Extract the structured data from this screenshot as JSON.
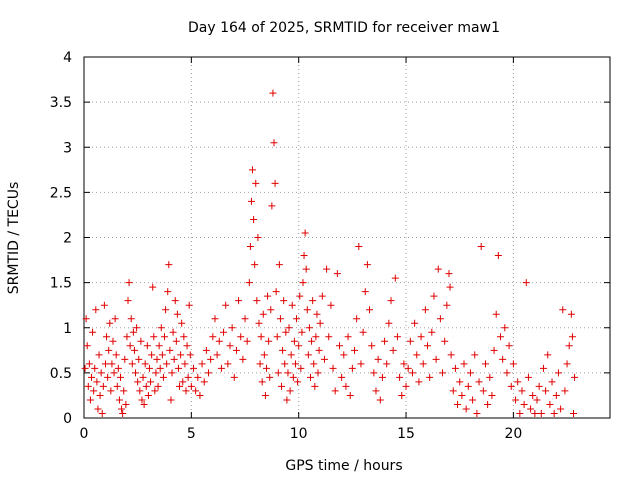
{
  "chart_data": {
    "type": "scatter",
    "title": "Day 164 of 2025, SRMTID for receiver maw1",
    "xlabel": "GPS time / hours",
    "ylabel": "SRMTID / TECUs",
    "xlim": [
      0,
      24.5
    ],
    "ylim": [
      0,
      4
    ],
    "xticks": [
      0,
      5,
      10,
      15,
      20
    ],
    "xtick_labels": [
      "0",
      "5",
      "10",
      "15",
      "20"
    ],
    "yticks": [
      0,
      0.5,
      1,
      1.5,
      2,
      2.5,
      3,
      3.5,
      4
    ],
    "ytick_labels": [
      "0",
      "0.5",
      "1",
      "1.5",
      "2",
      "2.5",
      "3",
      "3.5",
      "4"
    ],
    "grid": true,
    "marker": "plus",
    "marker_color": "#e00000",
    "series": [
      {
        "name": "SRMTID",
        "points": [
          [
            0.05,
            0.55
          ],
          [
            0.1,
            1.1
          ],
          [
            0.15,
            0.8
          ],
          [
            0.2,
            0.35
          ],
          [
            0.25,
            0.6
          ],
          [
            0.3,
            0.2
          ],
          [
            0.35,
            0.45
          ],
          [
            0.4,
            0.95
          ],
          [
            0.45,
            0.3
          ],
          [
            0.5,
            0.55
          ],
          [
            0.55,
            1.2
          ],
          [
            0.6,
            0.4
          ],
          [
            0.65,
            0.1
          ],
          [
            0.7,
            0.7
          ],
          [
            0.75,
            0.25
          ],
          [
            0.8,
            0.5
          ],
          [
            0.85,
            0.05
          ],
          [
            0.9,
            0.35
          ],
          [
            0.95,
            1.25
          ],
          [
            1.0,
            0.6
          ],
          [
            1.05,
            0.9
          ],
          [
            1.1,
            0.45
          ],
          [
            1.15,
            0.75
          ],
          [
            1.2,
            1.05
          ],
          [
            1.25,
            0.3
          ],
          [
            1.3,
            0.6
          ],
          [
            1.35,
            0.85
          ],
          [
            1.4,
            0.5
          ],
          [
            1.45,
            1.1
          ],
          [
            1.5,
            0.7
          ],
          [
            1.55,
            0.35
          ],
          [
            1.6,
            0.55
          ],
          [
            1.65,
            0.2
          ],
          [
            1.7,
            0.45
          ],
          [
            1.75,
            0.1
          ],
          [
            1.8,
            0.05
          ],
          [
            1.85,
            0.3
          ],
          [
            1.9,
            0.65
          ],
          [
            1.95,
            0.15
          ],
          [
            2.0,
            0.9
          ],
          [
            2.05,
            1.3
          ],
          [
            2.1,
            1.5
          ],
          [
            2.15,
            0.8
          ],
          [
            2.2,
            1.1
          ],
          [
            2.25,
            0.6
          ],
          [
            2.3,
            0.95
          ],
          [
            2.35,
            0.75
          ],
          [
            2.4,
            0.5
          ],
          [
            2.45,
            1.0
          ],
          [
            2.5,
            0.4
          ],
          [
            2.55,
            0.65
          ],
          [
            2.6,
            0.3
          ],
          [
            2.65,
            0.85
          ],
          [
            2.7,
            0.2
          ],
          [
            2.75,
            0.45
          ],
          [
            2.8,
            0.15
          ],
          [
            2.85,
            0.6
          ],
          [
            2.9,
            0.35
          ],
          [
            2.95,
            0.8
          ],
          [
            3.0,
            0.25
          ],
          [
            3.05,
            0.55
          ],
          [
            3.1,
            0.4
          ],
          [
            3.15,
            0.7
          ],
          [
            3.2,
            1.45
          ],
          [
            3.25,
            0.9
          ],
          [
            3.3,
            0.3
          ],
          [
            3.35,
            0.5
          ],
          [
            3.4,
            0.65
          ],
          [
            3.45,
            0.35
          ],
          [
            3.5,
            0.8
          ],
          [
            3.55,
            0.55
          ],
          [
            3.6,
            1.0
          ],
          [
            3.65,
            0.7
          ],
          [
            3.7,
            0.45
          ],
          [
            3.75,
            0.9
          ],
          [
            3.8,
            1.2
          ],
          [
            3.85,
            0.6
          ],
          [
            3.9,
            1.4
          ],
          [
            3.95,
            1.7
          ],
          [
            4.0,
            0.75
          ],
          [
            4.05,
            0.2
          ],
          [
            4.1,
            0.5
          ],
          [
            4.15,
            0.95
          ],
          [
            4.2,
            0.65
          ],
          [
            4.25,
            1.3
          ],
          [
            4.3,
            0.85
          ],
          [
            4.35,
            1.15
          ],
          [
            4.4,
            0.55
          ],
          [
            4.45,
            0.35
          ],
          [
            4.5,
            0.7
          ],
          [
            4.55,
            1.05
          ],
          [
            4.6,
            0.4
          ],
          [
            4.65,
            0.9
          ],
          [
            4.7,
            0.6
          ],
          [
            4.75,
            0.3
          ],
          [
            4.8,
            0.8
          ],
          [
            4.85,
            0.45
          ],
          [
            4.9,
            1.25
          ],
          [
            4.95,
            0.7
          ],
          [
            5.0,
            0.35
          ],
          [
            5.1,
            0.55
          ],
          [
            5.2,
            0.3
          ],
          [
            5.3,
            0.45
          ],
          [
            5.4,
            0.25
          ],
          [
            5.5,
            0.6
          ],
          [
            5.6,
            0.4
          ],
          [
            5.7,
            0.75
          ],
          [
            5.8,
            0.5
          ],
          [
            5.9,
            0.65
          ],
          [
            6.0,
            0.9
          ],
          [
            6.1,
            1.1
          ],
          [
            6.2,
            0.7
          ],
          [
            6.3,
            0.85
          ],
          [
            6.4,
            0.55
          ],
          [
            6.5,
            0.95
          ],
          [
            6.6,
            1.25
          ],
          [
            6.7,
            0.6
          ],
          [
            6.8,
            0.8
          ],
          [
            6.9,
            1.0
          ],
          [
            7.0,
            0.45
          ],
          [
            7.1,
            0.75
          ],
          [
            7.2,
            1.3
          ],
          [
            7.3,
            0.9
          ],
          [
            7.4,
            0.65
          ],
          [
            7.5,
            1.1
          ],
          [
            7.6,
            0.85
          ],
          [
            7.7,
            1.5
          ],
          [
            7.75,
            1.9
          ],
          [
            7.8,
            2.4
          ],
          [
            7.85,
            2.75
          ],
          [
            7.9,
            2.2
          ],
          [
            7.95,
            1.7
          ],
          [
            8.0,
            2.6
          ],
          [
            8.05,
            1.3
          ],
          [
            8.1,
            2.0
          ],
          [
            8.15,
            1.05
          ],
          [
            8.2,
            0.6
          ],
          [
            8.25,
            0.9
          ],
          [
            8.3,
            0.4
          ],
          [
            8.35,
            1.15
          ],
          [
            8.4,
            0.7
          ],
          [
            8.45,
            0.25
          ],
          [
            8.5,
            0.55
          ],
          [
            8.55,
            1.35
          ],
          [
            8.6,
            0.85
          ],
          [
            8.65,
            0.45
          ],
          [
            8.7,
            1.2
          ],
          [
            8.75,
            2.35
          ],
          [
            8.8,
            3.6
          ],
          [
            8.85,
            3.05
          ],
          [
            8.9,
            2.6
          ],
          [
            8.95,
            1.4
          ],
          [
            9.0,
            0.9
          ],
          [
            9.05,
            0.5
          ],
          [
            9.1,
            1.7
          ],
          [
            9.15,
            1.1
          ],
          [
            9.2,
            0.35
          ],
          [
            9.25,
            0.75
          ],
          [
            9.3,
            1.3
          ],
          [
            9.35,
            0.6
          ],
          [
            9.4,
            0.95
          ],
          [
            9.45,
            0.2
          ],
          [
            9.5,
            0.5
          ],
          [
            9.55,
            1.0
          ],
          [
            9.6,
            0.3
          ],
          [
            9.65,
            0.7
          ],
          [
            9.7,
            1.25
          ],
          [
            9.75,
            0.45
          ],
          [
            9.8,
            0.85
          ],
          [
            9.85,
            0.6
          ],
          [
            9.9,
            1.1
          ],
          [
            9.95,
            0.4
          ],
          [
            10.0,
            0.8
          ],
          [
            10.05,
            1.35
          ],
          [
            10.1,
            0.55
          ],
          [
            10.15,
            0.95
          ],
          [
            10.2,
            1.5
          ],
          [
            10.25,
            1.8
          ],
          [
            10.3,
            2.05
          ],
          [
            10.35,
            1.65
          ],
          [
            10.4,
            1.2
          ],
          [
            10.45,
            0.7
          ],
          [
            10.5,
            1.0
          ],
          [
            10.55,
            0.45
          ],
          [
            10.6,
            0.85
          ],
          [
            10.65,
            1.3
          ],
          [
            10.7,
            0.6
          ],
          [
            10.75,
            0.35
          ],
          [
            10.8,
            0.9
          ],
          [
            10.85,
            1.15
          ],
          [
            10.9,
            0.5
          ],
          [
            10.95,
            0.75
          ],
          [
            11.0,
            1.05
          ],
          [
            11.1,
            1.35
          ],
          [
            11.2,
            0.65
          ],
          [
            11.3,
            1.65
          ],
          [
            11.4,
            0.9
          ],
          [
            11.5,
            1.25
          ],
          [
            11.6,
            0.55
          ],
          [
            11.7,
            0.3
          ],
          [
            11.8,
            1.6
          ],
          [
            11.9,
            0.8
          ],
          [
            12.0,
            0.45
          ],
          [
            12.1,
            0.7
          ],
          [
            12.2,
            0.35
          ],
          [
            12.3,
            0.9
          ],
          [
            12.4,
            0.25
          ],
          [
            12.5,
            0.55
          ],
          [
            12.6,
            0.75
          ],
          [
            12.7,
            1.1
          ],
          [
            12.8,
            1.9
          ],
          [
            12.9,
            0.6
          ],
          [
            13.0,
            0.95
          ],
          [
            13.1,
            1.4
          ],
          [
            13.2,
            1.7
          ],
          [
            13.3,
            1.2
          ],
          [
            13.4,
            0.8
          ],
          [
            13.5,
            0.5
          ],
          [
            13.6,
            0.3
          ],
          [
            13.7,
            0.65
          ],
          [
            13.8,
            0.2
          ],
          [
            13.9,
            0.45
          ],
          [
            14.0,
            0.85
          ],
          [
            14.1,
            0.6
          ],
          [
            14.2,
            1.05
          ],
          [
            14.3,
            1.3
          ],
          [
            14.4,
            0.75
          ],
          [
            14.5,
            1.55
          ],
          [
            14.6,
            0.9
          ],
          [
            14.7,
            0.45
          ],
          [
            14.8,
            0.25
          ],
          [
            14.9,
            0.6
          ],
          [
            15.0,
            0.35
          ],
          [
            15.1,
            0.55
          ],
          [
            15.2,
            0.85
          ],
          [
            15.3,
            0.5
          ],
          [
            15.4,
            1.05
          ],
          [
            15.5,
            0.7
          ],
          [
            15.6,
            0.4
          ],
          [
            15.7,
            0.9
          ],
          [
            15.8,
            0.6
          ],
          [
            15.9,
            1.2
          ],
          [
            16.0,
            0.8
          ],
          [
            16.1,
            0.45
          ],
          [
            16.2,
            0.95
          ],
          [
            16.3,
            1.35
          ],
          [
            16.4,
            0.65
          ],
          [
            16.5,
            1.65
          ],
          [
            16.6,
            1.1
          ],
          [
            16.7,
            0.5
          ],
          [
            16.8,
            0.85
          ],
          [
            16.9,
            1.25
          ],
          [
            17.0,
            1.6
          ],
          [
            17.05,
            1.45
          ],
          [
            17.1,
            0.7
          ],
          [
            17.2,
            0.3
          ],
          [
            17.3,
            0.55
          ],
          [
            17.4,
            0.15
          ],
          [
            17.5,
            0.4
          ],
          [
            17.6,
            0.25
          ],
          [
            17.7,
            0.6
          ],
          [
            17.8,
            0.1
          ],
          [
            17.9,
            0.35
          ],
          [
            18.0,
            0.5
          ],
          [
            18.1,
            0.2
          ],
          [
            18.2,
            0.7
          ],
          [
            18.3,
            0.05
          ],
          [
            18.4,
            0.4
          ],
          [
            18.5,
            1.9
          ],
          [
            18.6,
            0.3
          ],
          [
            18.7,
            0.6
          ],
          [
            18.8,
            0.15
          ],
          [
            18.9,
            0.45
          ],
          [
            19.0,
            0.25
          ],
          [
            19.1,
            0.75
          ],
          [
            19.2,
            1.15
          ],
          [
            19.3,
            1.8
          ],
          [
            19.4,
            0.9
          ],
          [
            19.5,
            0.65
          ],
          [
            19.6,
            1.0
          ],
          [
            19.7,
            0.5
          ],
          [
            19.8,
            0.8
          ],
          [
            19.9,
            0.35
          ],
          [
            20.0,
            0.6
          ],
          [
            20.1,
            0.2
          ],
          [
            20.2,
            0.4
          ],
          [
            20.3,
            0.05
          ],
          [
            20.4,
            0.3
          ],
          [
            20.5,
            0.15
          ],
          [
            20.6,
            1.5
          ],
          [
            20.7,
            0.45
          ],
          [
            20.8,
            0.1
          ],
          [
            20.9,
            0.25
          ],
          [
            21.0,
            0.05
          ],
          [
            21.1,
            0.2
          ],
          [
            21.2,
            0.35
          ],
          [
            21.3,
            0.05
          ],
          [
            21.4,
            0.55
          ],
          [
            21.5,
            0.3
          ],
          [
            21.6,
            0.7
          ],
          [
            21.7,
            0.15
          ],
          [
            21.8,
            0.4
          ],
          [
            21.9,
            0.05
          ],
          [
            22.0,
            0.25
          ],
          [
            22.1,
            0.5
          ],
          [
            22.2,
            0.1
          ],
          [
            22.3,
            1.2
          ],
          [
            22.4,
            0.3
          ],
          [
            22.5,
            0.6
          ],
          [
            22.6,
            0.8
          ],
          [
            22.7,
            1.15
          ],
          [
            22.75,
            0.9
          ],
          [
            22.8,
            0.05
          ],
          [
            22.85,
            0.45
          ]
        ]
      }
    ]
  }
}
